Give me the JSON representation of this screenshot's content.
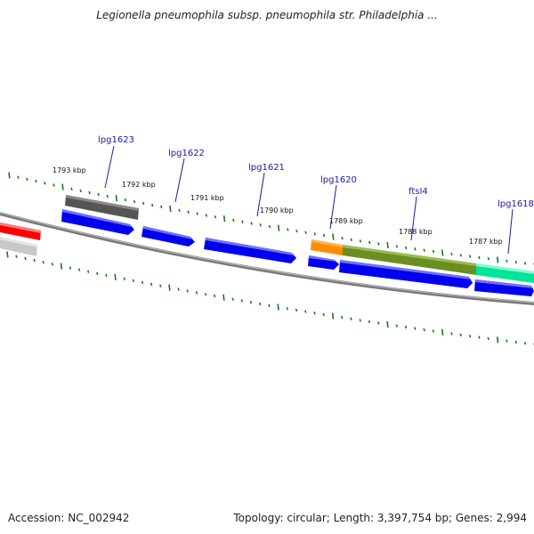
{
  "title": "Legionella pneumophila subsp. pneumophila str. Philadelphia ...",
  "footer": {
    "accession": "Accession: NC_002942",
    "topology": "Topology: circular; Length: 3,397,754 bp; Genes: 2,994"
  },
  "colors": {
    "backbone": "#7f7f7f",
    "tick": "#1a7a1a",
    "cds": "#0000ee",
    "gene_label": "#1a1aa8"
  },
  "ruler_labels": [
    "1793 kbp",
    "1792 kbp",
    "1791 kbp",
    "1790 kbp",
    "1789 kbp",
    "1788 kbp",
    "1787 kbp"
  ],
  "gene_labels": [
    "lpg1623",
    "lpg1622",
    "lpg1621",
    "lpg1620",
    "ftsI4",
    "lpg1618"
  ],
  "features": [
    {
      "name": "feature-red",
      "color": "#ff0000",
      "kind": "bar"
    },
    {
      "name": "feature-gray-light",
      "color": "#c0c0c0",
      "kind": "bar"
    },
    {
      "name": "feature-gray-dark",
      "color": "#5a5a5a",
      "kind": "bar"
    },
    {
      "name": "feature-orange",
      "color": "#ff8c00",
      "kind": "bar"
    },
    {
      "name": "feature-olive",
      "color": "#6b8e23",
      "kind": "bar"
    },
    {
      "name": "feature-teal",
      "color": "#00e59a",
      "kind": "bar"
    },
    {
      "name": "cds-lpg1623",
      "color": "#0000ee",
      "kind": "arrow"
    },
    {
      "name": "cds-lpg1622",
      "color": "#0000ee",
      "kind": "arrow"
    },
    {
      "name": "cds-lpg1621",
      "color": "#0000ee",
      "kind": "arrow"
    },
    {
      "name": "cds-lpg1620",
      "color": "#0000ee",
      "kind": "arrow"
    },
    {
      "name": "cds-ftsI4",
      "color": "#0000ee",
      "kind": "arrow"
    },
    {
      "name": "cds-lpg1618",
      "color": "#0000ee",
      "kind": "arrow"
    }
  ]
}
